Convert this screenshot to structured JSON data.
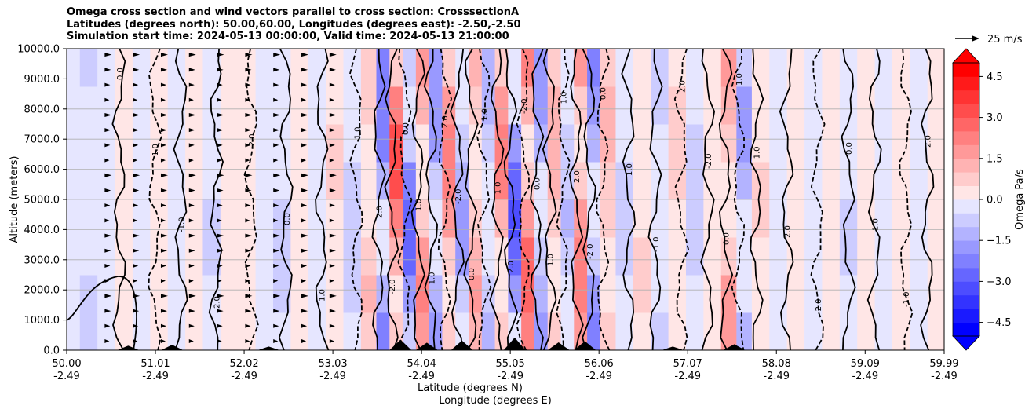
{
  "chart_data": {
    "type": "heatmap",
    "title_lines": [
      "Omega cross section and wind vectors parallel to cross section: CrosssectionA",
      "Latitudes (degrees north): 50.00,60.00, Longitudes (degrees east): -2.50,-2.50",
      "Simulation start time: 2024-05-13 00:00:00, Valid time: 2024-05-13 21:00:00"
    ],
    "ylabel": "Altitude (meters)",
    "xlabel_lat": "Latitude (degrees N)",
    "xlabel_lon": "Longitude (degrees E)",
    "ylim": [
      0,
      10000
    ],
    "xlim": [
      50.0,
      59.99
    ],
    "yticks": [
      0,
      1000,
      2000,
      3000,
      4000,
      5000,
      6000,
      7000,
      8000,
      9000,
      10000
    ],
    "ytick_labels": [
      "0.0",
      "1000.0",
      "2000.0",
      "3000.0",
      "4000.0",
      "5000.0",
      "6000.0",
      "7000.0",
      "8000.0",
      "9000.0",
      "10000.0"
    ],
    "xticks_lat": [
      "50.00",
      "51.01",
      "52.02",
      "53.03",
      "54.04",
      "55.05",
      "56.06",
      "57.07",
      "58.08",
      "59.09",
      "59.99"
    ],
    "xticks_lon": [
      "-2.49",
      "-2.49",
      "-2.49",
      "-2.49",
      "-2.49",
      "-2.49",
      "-2.49",
      "-2.49",
      "-2.49",
      "-2.49",
      "-2.49"
    ],
    "xtick_values": [
      50.0,
      51.01,
      52.02,
      53.03,
      54.04,
      55.05,
      56.06,
      57.07,
      58.08,
      59.09,
      59.99
    ],
    "colorbar": {
      "label": "Omega Pa/s",
      "min": -5.0,
      "max": 5.0,
      "step": 0.5,
      "ticks": [
        -4.5,
        -3.0,
        -1.5,
        0.0,
        1.5,
        3.0,
        4.5
      ],
      "tick_labels": [
        "−4.5",
        "−3.0",
        "−1.5",
        "0.0",
        "1.5",
        "3.0",
        "4.5"
      ],
      "low_color": "#0000ff",
      "mid_color": "#ffffff",
      "high_color": "#ff0000"
    },
    "vector_key_label": "25 m/s",
    "contour_labels": [
      "0.0",
      "1.0",
      "-1.0",
      "2.0",
      "-2.0"
    ],
    "bands": [
      {
        "lat": 50.05,
        "omega": -0.3
      },
      {
        "lat": 50.25,
        "omega": -0.6
      },
      {
        "lat": 50.45,
        "omega": -0.2
      },
      {
        "lat": 50.65,
        "omega": 0.2
      },
      {
        "lat": 50.85,
        "omega": -0.3
      },
      {
        "lat": 51.05,
        "omega": 0.3
      },
      {
        "lat": 51.25,
        "omega": -0.4
      },
      {
        "lat": 51.45,
        "omega": 0.2
      },
      {
        "lat": 51.65,
        "omega": -0.6
      },
      {
        "lat": 51.85,
        "omega": 0.3
      },
      {
        "lat": 52.05,
        "omega": 0.5
      },
      {
        "lat": 52.25,
        "omega": -0.3
      },
      {
        "lat": 52.45,
        "omega": -0.7
      },
      {
        "lat": 52.65,
        "omega": 0.4
      },
      {
        "lat": 52.85,
        "omega": -0.3
      },
      {
        "lat": 53.05,
        "omega": 0.6
      },
      {
        "lat": 53.25,
        "omega": -0.8
      },
      {
        "lat": 53.45,
        "omega": 1.1
      },
      {
        "lat": 53.6,
        "omega": -2.5
      },
      {
        "lat": 53.75,
        "omega": 3.5
      },
      {
        "lat": 53.9,
        "omega": -3.0
      },
      {
        "lat": 54.05,
        "omega": 2.2
      },
      {
        "lat": 54.2,
        "omega": -2.0
      },
      {
        "lat": 54.35,
        "omega": 2.6
      },
      {
        "lat": 54.5,
        "omega": -1.8
      },
      {
        "lat": 54.65,
        "omega": 1.6
      },
      {
        "lat": 54.8,
        "omega": -1.2
      },
      {
        "lat": 54.95,
        "omega": 2.2
      },
      {
        "lat": 55.1,
        "omega": -3.4
      },
      {
        "lat": 55.25,
        "omega": 3.0
      },
      {
        "lat": 55.4,
        "omega": -1.8
      },
      {
        "lat": 55.55,
        "omega": 1.5
      },
      {
        "lat": 55.7,
        "omega": -1.1
      },
      {
        "lat": 55.85,
        "omega": 2.6
      },
      {
        "lat": 56.0,
        "omega": -2.2
      },
      {
        "lat": 56.15,
        "omega": 1.2
      },
      {
        "lat": 56.35,
        "omega": -0.8
      },
      {
        "lat": 56.55,
        "omega": 0.6
      },
      {
        "lat": 56.75,
        "omega": -0.6
      },
      {
        "lat": 56.95,
        "omega": 0.7
      },
      {
        "lat": 57.15,
        "omega": -0.9
      },
      {
        "lat": 57.35,
        "omega": 0.5
      },
      {
        "lat": 57.55,
        "omega": 1.8
      },
      {
        "lat": 57.7,
        "omega": -1.6
      },
      {
        "lat": 57.9,
        "omega": 0.6
      },
      {
        "lat": 58.1,
        "omega": -0.4
      },
      {
        "lat": 58.3,
        "omega": 0.3
      },
      {
        "lat": 58.5,
        "omega": -0.5
      },
      {
        "lat": 58.7,
        "omega": 0.2
      },
      {
        "lat": 58.9,
        "omega": -0.6
      },
      {
        "lat": 59.1,
        "omega": 0.3
      },
      {
        "lat": 59.3,
        "omega": -0.4
      },
      {
        "lat": 59.5,
        "omega": 0.5
      },
      {
        "lat": 59.7,
        "omega": -0.3
      },
      {
        "lat": 59.9,
        "omega": 0.2
      }
    ],
    "contours": [
      50.6,
      51.0,
      51.3,
      51.7,
      52.1,
      52.5,
      52.9,
      53.3,
      53.55,
      53.7,
      53.85,
      54.0,
      54.15,
      54.3,
      54.45,
      54.6,
      54.75,
      54.9,
      55.05,
      55.2,
      55.35,
      55.5,
      55.65,
      55.8,
      55.95,
      56.1,
      56.4,
      56.7,
      57.0,
      57.3,
      57.5,
      57.65,
      57.85,
      58.2,
      58.55,
      58.9,
      59.2,
      59.55,
      59.8
    ],
    "terrain": [
      {
        "lat": 50.7,
        "height": 150
      },
      {
        "lat": 51.2,
        "height": 180
      },
      {
        "lat": 52.3,
        "height": 120
      },
      {
        "lat": 53.8,
        "height": 350
      },
      {
        "lat": 54.1,
        "height": 250
      },
      {
        "lat": 54.5,
        "height": 320
      },
      {
        "lat": 55.1,
        "height": 420
      },
      {
        "lat": 55.6,
        "height": 260
      },
      {
        "lat": 55.9,
        "height": 300
      },
      {
        "lat": 56.9,
        "height": 120
      },
      {
        "lat": 57.6,
        "height": 200
      }
    ]
  }
}
